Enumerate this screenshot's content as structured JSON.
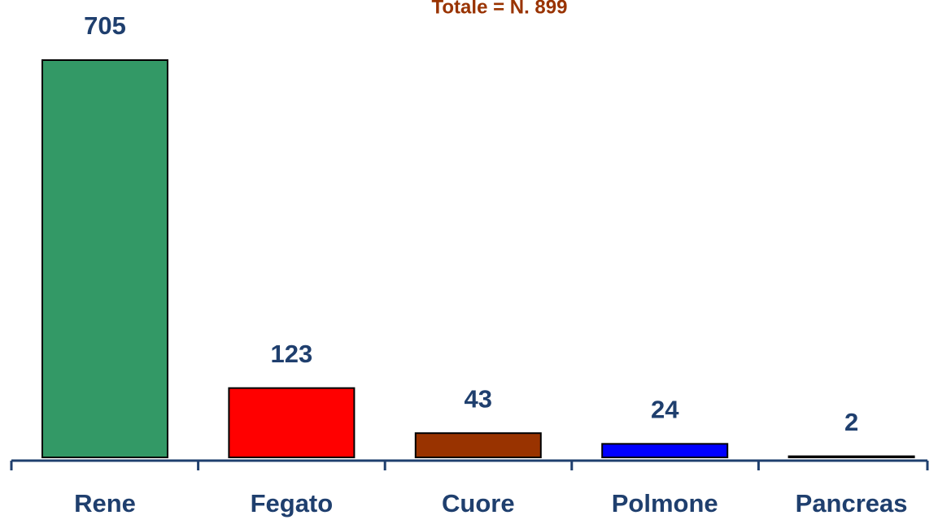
{
  "chart_data": {
    "type": "bar",
    "title": "Totale = N. 899",
    "categories": [
      "Rene",
      "Fegato",
      "Cuore",
      "Polmone",
      "Pancreas"
    ],
    "values": [
      705,
      123,
      43,
      24,
      2
    ],
    "colors": [
      "#339966",
      "#ff0000",
      "#993300",
      "#0000ff",
      "#0000cc"
    ]
  }
}
